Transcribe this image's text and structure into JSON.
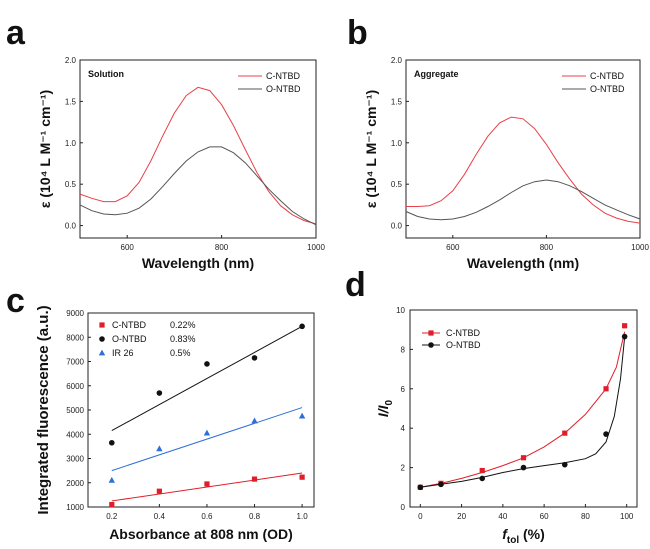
{
  "panels": {
    "a": {
      "letter": "a"
    },
    "b": {
      "letter": "b"
    },
    "c": {
      "letter": "c"
    },
    "d": {
      "letter": "d"
    }
  },
  "chart_data": [
    {
      "id": "a",
      "type": "line",
      "annotation": "Solution",
      "xlabel": "Wavelength (nm)",
      "ylabel": "ε (10⁴ L M⁻¹ cm⁻¹)",
      "xlim": [
        500,
        1000
      ],
      "ylim": [
        -0.15,
        2.0
      ],
      "xticks": [
        600,
        800,
        1000
      ],
      "yticks": [
        0.0,
        0.5,
        1.0,
        1.5,
        2.0
      ],
      "legend_position": "top-right",
      "series": [
        {
          "name": "C-NTBD",
          "color": "#e8404a",
          "x": [
            500,
            525,
            550,
            575,
            600,
            625,
            650,
            675,
            700,
            725,
            750,
            775,
            800,
            825,
            850,
            875,
            900,
            925,
            950,
            975,
            1000
          ],
          "y": [
            0.38,
            0.33,
            0.29,
            0.29,
            0.36,
            0.52,
            0.78,
            1.08,
            1.36,
            1.57,
            1.67,
            1.63,
            1.46,
            1.21,
            0.92,
            0.64,
            0.41,
            0.24,
            0.13,
            0.06,
            0.02
          ]
        },
        {
          "name": "O-NTBD",
          "color": "#555555",
          "x": [
            500,
            525,
            550,
            575,
            600,
            625,
            650,
            675,
            700,
            725,
            750,
            775,
            800,
            825,
            850,
            875,
            900,
            925,
            950,
            975,
            1000
          ],
          "y": [
            0.25,
            0.18,
            0.14,
            0.13,
            0.15,
            0.21,
            0.32,
            0.47,
            0.63,
            0.78,
            0.89,
            0.95,
            0.95,
            0.88,
            0.76,
            0.6,
            0.44,
            0.3,
            0.17,
            0.08,
            0.01
          ]
        }
      ]
    },
    {
      "id": "b",
      "type": "line",
      "annotation": "Aggregate",
      "xlabel": "Wavelength (nm)",
      "ylabel": "ε (10⁴ L M⁻¹ cm⁻¹)",
      "xlim": [
        500,
        1000
      ],
      "ylim": [
        -0.15,
        2.0
      ],
      "xticks": [
        600,
        800,
        1000
      ],
      "yticks": [
        0.0,
        0.5,
        1.0,
        1.5,
        2.0
      ],
      "legend_position": "top-right",
      "series": [
        {
          "name": "C-NTBD",
          "color": "#e8404a",
          "x": [
            500,
            525,
            550,
            575,
            600,
            625,
            650,
            675,
            700,
            725,
            750,
            775,
            800,
            825,
            850,
            875,
            900,
            925,
            950,
            975,
            1000
          ],
          "y": [
            0.23,
            0.23,
            0.24,
            0.3,
            0.42,
            0.62,
            0.86,
            1.08,
            1.24,
            1.31,
            1.29,
            1.17,
            0.98,
            0.76,
            0.56,
            0.38,
            0.25,
            0.15,
            0.09,
            0.05,
            0.03
          ]
        },
        {
          "name": "O-NTBD",
          "color": "#555555",
          "x": [
            500,
            525,
            550,
            575,
            600,
            625,
            650,
            675,
            700,
            725,
            750,
            775,
            800,
            825,
            850,
            875,
            900,
            925,
            950,
            975,
            1000
          ],
          "y": [
            0.17,
            0.11,
            0.08,
            0.07,
            0.08,
            0.11,
            0.16,
            0.23,
            0.31,
            0.4,
            0.48,
            0.53,
            0.55,
            0.53,
            0.48,
            0.41,
            0.33,
            0.25,
            0.19,
            0.13,
            0.08
          ]
        }
      ]
    },
    {
      "id": "c",
      "type": "scatter",
      "xlabel": "Absorbance at 808 nm (OD)",
      "ylabel": "Integrated fluorescence (a.u.)",
      "xlim": [
        0.1,
        1.05
      ],
      "ylim": [
        1000,
        9000
      ],
      "xticks": [
        0.2,
        0.4,
        0.6,
        0.8,
        1.0
      ],
      "yticks": [
        1000,
        2000,
        3000,
        4000,
        5000,
        6000,
        7000,
        8000,
        9000
      ],
      "legend_position": "top-left",
      "series": [
        {
          "name": "C-NTBD",
          "value": "0.22%",
          "color": "#e01e2a",
          "marker": "square",
          "x": [
            0.2,
            0.4,
            0.6,
            0.8,
            1.0
          ],
          "y": [
            1100,
            1650,
            1950,
            2150,
            2230
          ],
          "fit": [
            [
              0.2,
              1250
            ],
            [
              1.0,
              2400
            ]
          ]
        },
        {
          "name": "O-NTBD",
          "value": "0.83%",
          "color": "#111111",
          "marker": "circle",
          "x": [
            0.2,
            0.4,
            0.6,
            0.8,
            1.0
          ],
          "y": [
            3650,
            5700,
            6900,
            7150,
            8450
          ],
          "fit": [
            [
              0.2,
              4150
            ],
            [
              1.0,
              8450
            ]
          ]
        },
        {
          "name": "IR 26",
          "value": "0.5%",
          "color": "#2f6fd8",
          "marker": "triangle",
          "x": [
            0.2,
            0.4,
            0.6,
            0.8,
            1.0
          ],
          "y": [
            2100,
            3400,
            4050,
            4550,
            4750
          ],
          "fit": [
            [
              0.2,
              2500
            ],
            [
              1.0,
              5100
            ]
          ]
        }
      ]
    },
    {
      "id": "d",
      "type": "line",
      "xlabel": "f",
      "xlabel_sub": "tol",
      "xlabel_unit": " (%)",
      "ylabel": "I/I",
      "ylabel_sub": "0",
      "xlim": [
        -5,
        105
      ],
      "ylim": [
        0,
        10
      ],
      "xticks": [
        0,
        20,
        40,
        60,
        80,
        100
      ],
      "yticks": [
        0,
        2,
        4,
        6,
        8,
        10
      ],
      "legend_position": "top-left",
      "series": [
        {
          "name": "C-NTBD",
          "color": "#e01e2a",
          "marker": "square",
          "x": [
            0,
            10,
            30,
            50,
            70,
            90,
            99
          ],
          "y": [
            1.0,
            1.2,
            1.85,
            2.5,
            3.75,
            6.0,
            9.2
          ],
          "curve_x": [
            0,
            10,
            20,
            30,
            40,
            50,
            60,
            70,
            80,
            90,
            95,
            99
          ],
          "curve_y": [
            1.0,
            1.2,
            1.45,
            1.75,
            2.1,
            2.5,
            3.05,
            3.75,
            4.7,
            6.0,
            7.1,
            8.9
          ]
        },
        {
          "name": "O-NTBD",
          "color": "#111111",
          "marker": "circle",
          "x": [
            0,
            10,
            30,
            50,
            70,
            90,
            99
          ],
          "y": [
            1.0,
            1.15,
            1.45,
            2.0,
            2.15,
            3.7,
            8.65
          ],
          "curve_x": [
            0,
            10,
            20,
            30,
            40,
            50,
            60,
            70,
            80,
            85,
            90,
            94,
            97,
            99
          ],
          "curve_y": [
            1.0,
            1.15,
            1.3,
            1.5,
            1.75,
            1.95,
            2.1,
            2.25,
            2.45,
            2.7,
            3.3,
            4.6,
            6.5,
            8.6
          ]
        }
      ]
    }
  ]
}
